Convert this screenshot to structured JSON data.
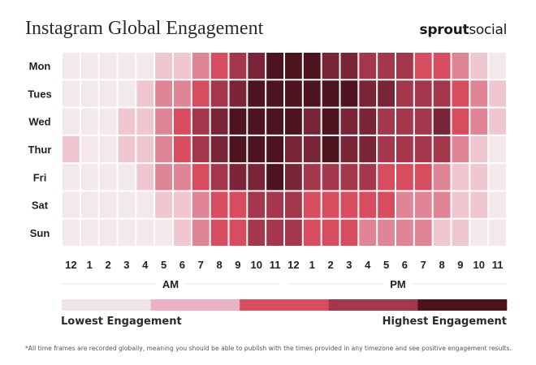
{
  "title": "Instagram Global Engagement",
  "brand": {
    "bold": "sprout",
    "light": "social"
  },
  "colors": {
    "scale": [
      "#f3e9ec",
      "#f0c6d1",
      "#e08596",
      "#d84c60",
      "#a5374c",
      "#7a2438",
      "#4d141f"
    ],
    "legend": [
      "#f3e4e8",
      "#eab2c2",
      "#d84c60",
      "#a5374c",
      "#4d141f"
    ]
  },
  "chart_data": {
    "type": "heatmap",
    "title": "Instagram Global Engagement",
    "rows": [
      "Mon",
      "Tues",
      "Wed",
      "Thur",
      "Fri",
      "Sat",
      "Sun"
    ],
    "columns": [
      "12",
      "1",
      "2",
      "3",
      "4",
      "5",
      "6",
      "7",
      "8",
      "9",
      "10",
      "11",
      "12",
      "1",
      "2",
      "3",
      "4",
      "5",
      "6",
      "7",
      "8",
      "9",
      "10",
      "11"
    ],
    "period_labels": [
      "AM",
      "PM"
    ],
    "scale": "0 = lowest engagement, 6 = highest engagement",
    "values": [
      [
        0,
        0,
        0,
        0,
        0,
        1,
        1,
        2,
        3,
        4,
        5,
        6,
        6,
        6,
        5,
        5,
        4,
        4,
        4,
        3,
        3,
        2,
        1,
        0
      ],
      [
        0,
        0,
        0,
        0,
        1,
        2,
        2,
        3,
        4,
        5,
        6,
        6,
        6,
        6,
        6,
        6,
        5,
        5,
        4,
        4,
        4,
        3,
        2,
        1
      ],
      [
        0,
        0,
        0,
        1,
        1,
        2,
        3,
        4,
        5,
        6,
        6,
        6,
        6,
        5,
        6,
        5,
        5,
        4,
        4,
        4,
        5,
        3,
        2,
        1
      ],
      [
        1,
        0,
        0,
        1,
        1,
        2,
        3,
        4,
        5,
        6,
        6,
        6,
        5,
        5,
        6,
        5,
        5,
        4,
        4,
        4,
        4,
        2,
        1,
        0
      ],
      [
        0,
        0,
        0,
        0,
        1,
        2,
        2,
        3,
        4,
        5,
        5,
        6,
        5,
        4,
        4,
        4,
        4,
        3,
        3,
        3,
        2,
        1,
        1,
        0
      ],
      [
        0,
        0,
        0,
        0,
        0,
        1,
        1,
        2,
        3,
        3,
        4,
        4,
        4,
        3,
        3,
        3,
        3,
        3,
        2,
        2,
        2,
        1,
        1,
        0
      ],
      [
        0,
        0,
        0,
        0,
        0,
        0,
        1,
        2,
        3,
        3,
        4,
        4,
        4,
        3,
        3,
        3,
        2,
        2,
        2,
        2,
        1,
        1,
        0,
        0
      ]
    ],
    "legend": {
      "low_label": "Lowest Engagement",
      "high_label": "Highest Engagement"
    }
  },
  "footnote": "*All time frames are recorded globally, meaning you should be able to publish with the times provided in any timezone and see positive engagement results."
}
